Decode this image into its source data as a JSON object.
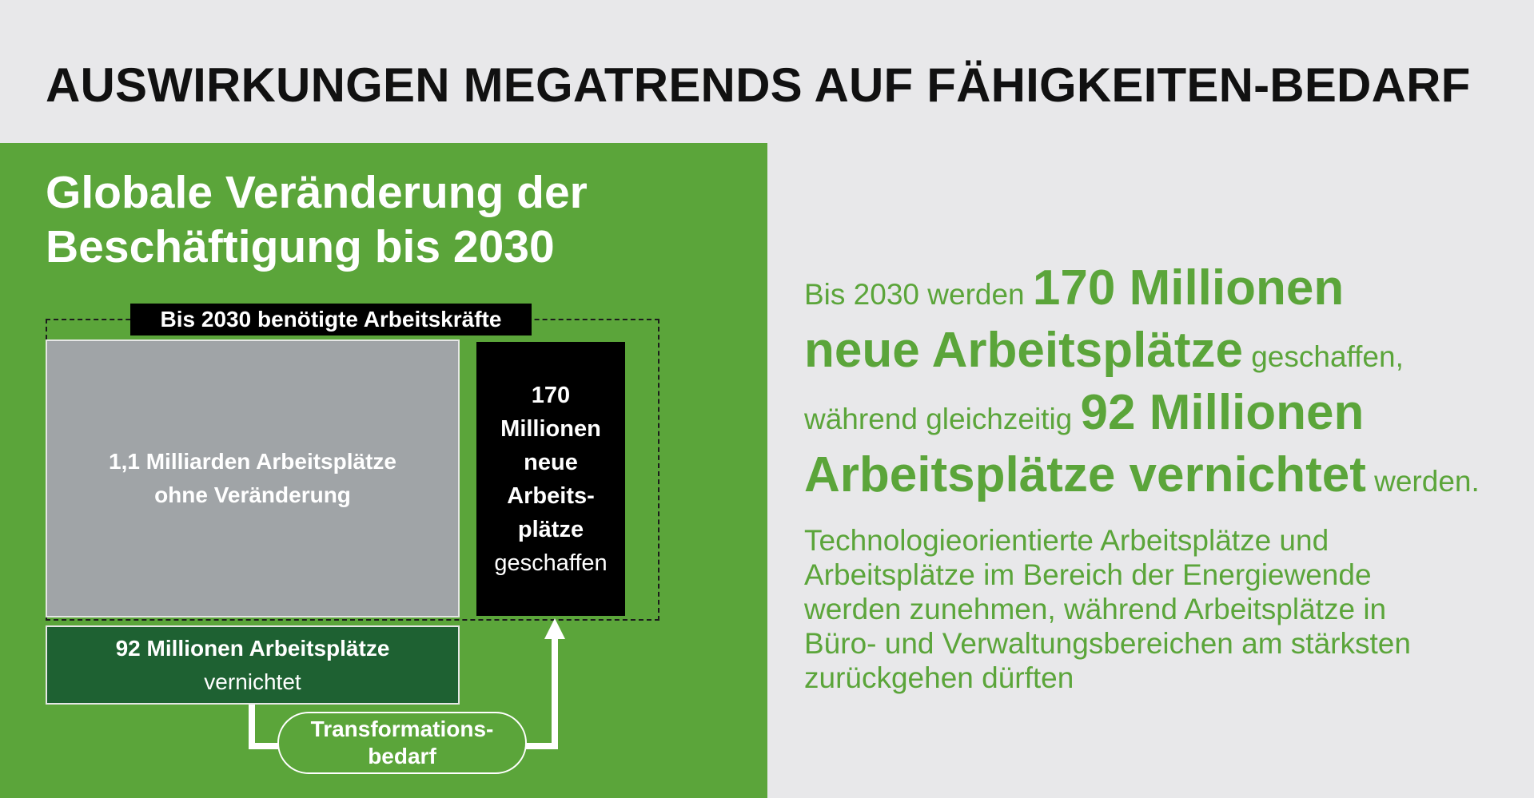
{
  "header": {
    "title": "AUSWIRKUNGEN MEGATRENDS AUF FÄHIGKEITEN-BEDARF"
  },
  "panel": {
    "heading_line1": "Globale Veränderung der",
    "heading_line2": "Beschäftigung bis 2030",
    "frame_label": "Bis 2030 benötigte Arbeitskräfte",
    "unchanged": {
      "line1": "1,1 Milliarden Arbeitsplätze",
      "line2": "ohne Veränderung"
    },
    "created": {
      "line1": "170",
      "line2": "Millionen",
      "line3": "neue",
      "line4": "Arbeits-",
      "line5": "plätze",
      "line6": "geschaffen"
    },
    "destroyed": {
      "line1": "92 Millionen Arbeitsplätze",
      "line2": "vernichtet"
    },
    "transformation": {
      "line1": "Transformations-",
      "line2": "bedarf"
    }
  },
  "summary": {
    "l1_pre": "Bis 2030 werden ",
    "l1_big": "170 Millionen",
    "l2_big": "neue Arbeitsplätze",
    "l2_post": " geschaffen,",
    "l3_pre": "während gleichzeitig ",
    "l3_big": "92 Millionen",
    "l4_big": "Arbeitsplätze vernichtet",
    "l4_post": " werden."
  },
  "detail": {
    "line1": "Technologieorientierte Arbeitsplätze und",
    "line2": "Arbeitsplätze im Bereich der Energiewende",
    "line3": "werden zunehmen, während Arbeitsplätze in",
    "line4": "Büro- und Verwaltungsbereichen am stärksten",
    "line5": "zurückgehen dürften"
  },
  "colors": {
    "brand_green": "#5ba53a",
    "dark_green": "#1e6132",
    "grey_box": "#a0a4a7",
    "background": "#e8e8ea"
  }
}
